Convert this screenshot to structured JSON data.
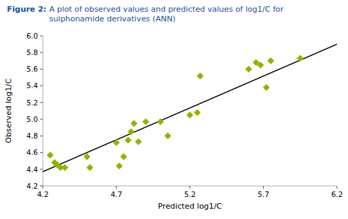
{
  "chart_data": {
    "type": "scatter",
    "title": "Figure 2:",
    "subtitle": "A plot of observed values and predicted values of log1/C for\nsulphonamide derivatives (ANN)",
    "x_label": "Predicted log1/C",
    "y_label": "Observed log1/C",
    "series": [
      {
        "type": "scatter",
        "color": "#8DB600",
        "marker": "diamond",
        "x": [
          4.25,
          4.28,
          4.3,
          4.32,
          4.35,
          4.5,
          4.52,
          4.7,
          4.72,
          4.75,
          4.78,
          4.8,
          4.82,
          4.85,
          4.9,
          5.0,
          5.05,
          5.2,
          5.25,
          5.27,
          5.6,
          5.65,
          5.68,
          5.72,
          5.75,
          5.95
        ],
        "values": [
          4.57,
          4.48,
          4.45,
          4.42,
          4.42,
          4.55,
          4.42,
          4.72,
          4.44,
          4.55,
          4.75,
          4.85,
          4.95,
          4.73,
          4.97,
          4.97,
          4.8,
          5.05,
          5.08,
          5.52,
          5.6,
          5.68,
          5.65,
          5.38,
          5.7,
          5.73
        ]
      },
      {
        "type": "line",
        "color": "black",
        "line_style": "solid",
        "x": [
          4.2,
          6.2
        ],
        "values": [
          4.37,
          5.9
        ]
      }
    ],
    "xlim": [
      4.2,
      6.2
    ],
    "ylim": [
      4.2,
      6.0
    ],
    "xticks": [
      4.2,
      4.7,
      5.2,
      5.7,
      6.2
    ],
    "yticks": [
      4.2,
      4.4,
      4.6,
      4.8,
      {
        "value": 5.0,
        "label": "5.0"
      },
      5.2,
      5.4,
      5.6,
      5.8,
      {
        "value": 6.0,
        "label": "6.0"
      }
    ],
    "grid": false
  }
}
